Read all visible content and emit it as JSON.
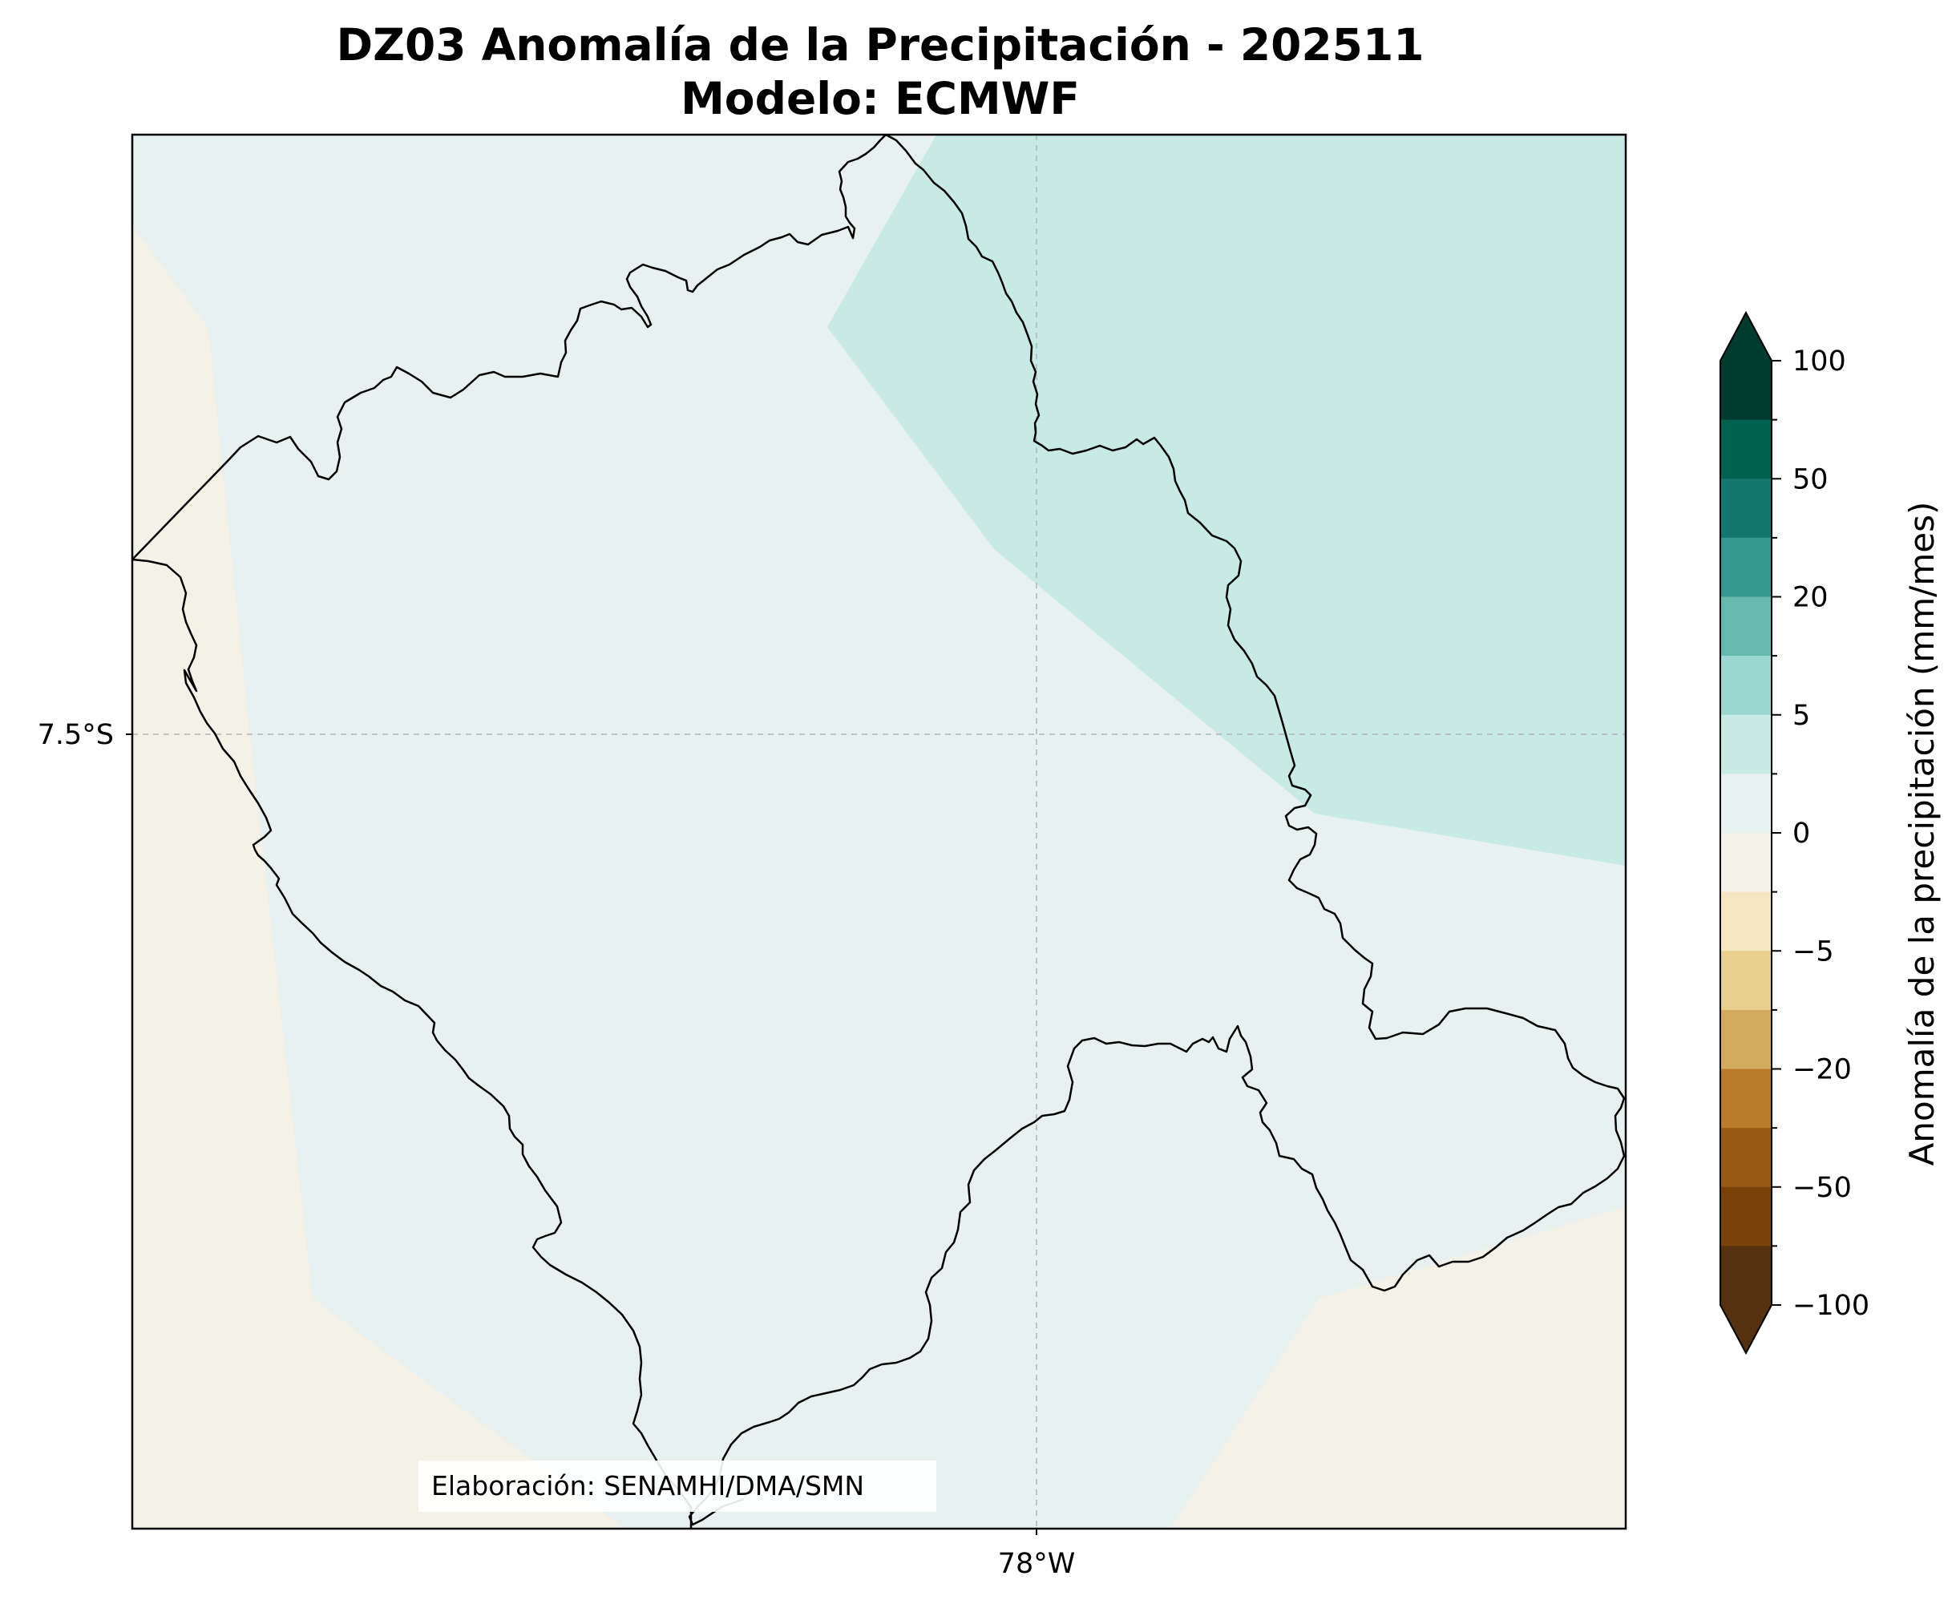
{
  "title": {
    "line1": "DZ03 Anomalía de la Precipitación - 202511",
    "line2": "Modelo: ECMWF"
  },
  "map": {
    "lon_label": "78°W",
    "lat_label": "7.5°S",
    "credit": "Elaboración: SENAMHI/DMA/SMN",
    "gridlines": true,
    "gridline_color": "#b4b4b4",
    "border_color": "#000000",
    "fill_colors": {
      "negative_0_to_-2.5": "#f4f1e6",
      "neutral_0_to_2.5": "#e7f1ef",
      "positive_2.5_to_5": "#c7eae4"
    }
  },
  "colorbar": {
    "label": "Anomalía de la precipitación (mm/mes)",
    "extend": "both",
    "tick_labels": [
      "100",
      "50",
      "20",
      "5",
      "0",
      "−5",
      "−20",
      "−50",
      "−100"
    ],
    "colors_top_to_bottom": [
      "#003b30",
      "#00614f",
      "#137770",
      "#35978f",
      "#67b9ad",
      "#9ad8cf",
      "#c7eae4",
      "#e7f1ef",
      "#f4f1e6",
      "#f5e7c2",
      "#e8cf90",
      "#d3ab5e",
      "#ba7b2b",
      "#985914",
      "#784108",
      "#553110"
    ],
    "over_color": "#003b30",
    "under_color": "#553110"
  }
}
